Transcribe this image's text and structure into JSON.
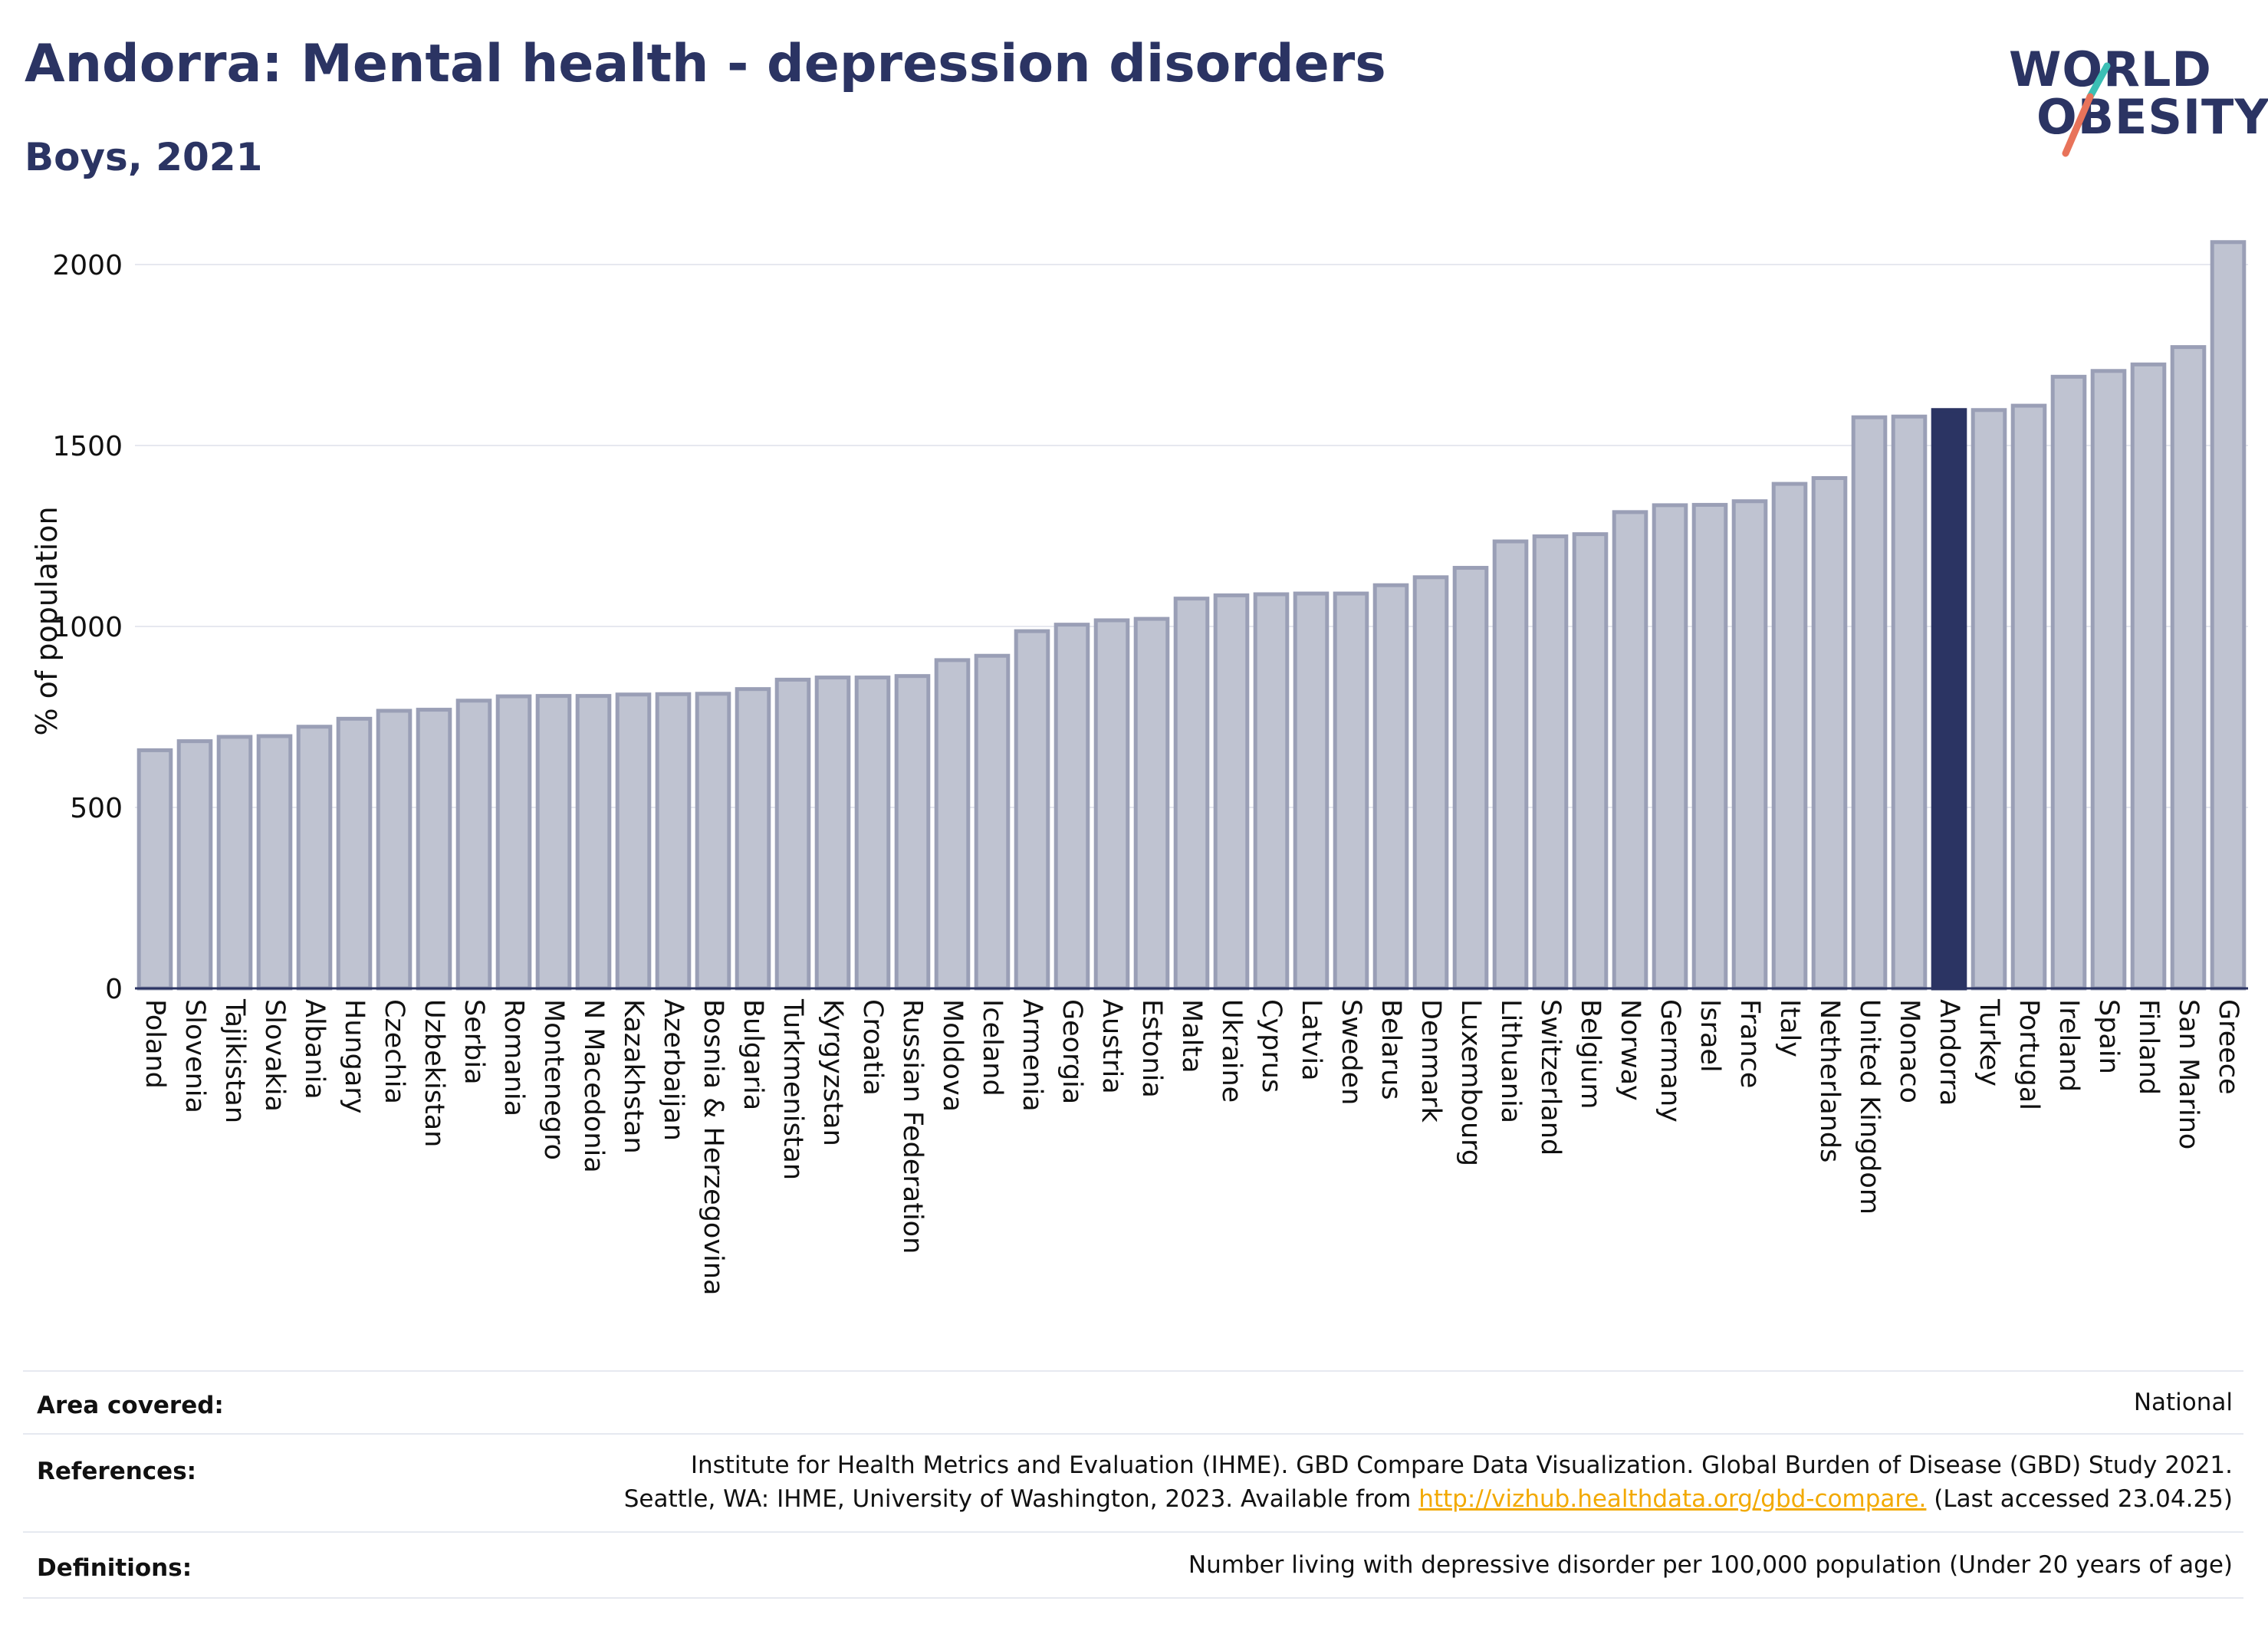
{
  "header": {
    "title": "Andorra: Mental health - depression disorders",
    "subtitle": "Boys, 2021"
  },
  "logo": {
    "line1": "WORLD",
    "line2": "OBESITY",
    "accent_colors": [
      "#3bbfb5",
      "#e8735a"
    ]
  },
  "colors": {
    "bar": "#bfc3d1",
    "bar_stroke": "#9a9fb6",
    "highlight": "#2b3463",
    "grid": "#e6e8ef"
  },
  "chart_data": {
    "type": "bar",
    "ylabel": "% of population",
    "ylim": [
      0,
      2100
    ],
    "yticks": [
      0,
      500,
      1000,
      1500,
      2000
    ],
    "highlight": "Andorra",
    "categories": [
      "Poland",
      "Slovenia",
      "Tajikistan",
      "Slovakia",
      "Albania",
      "Hungary",
      "Czechia",
      "Uzbekistan",
      "Serbia",
      "Romania",
      "Montenegro",
      "N Macedonia",
      "Kazakhstan",
      "Azerbaijan",
      "Bosnia & Herzegovina",
      "Bulgaria",
      "Turkmenistan",
      "Kyrgyzstan",
      "Croatia",
      "Russian Federation",
      "Moldova",
      "Iceland",
      "Armenia",
      "Georgia",
      "Austria",
      "Estonia",
      "Malta",
      "Ukraine",
      "Cyprus",
      "Latvia",
      "Sweden",
      "Belarus",
      "Denmark",
      "Luxembourg",
      "Lithuania",
      "Switzerland",
      "Belgium",
      "Norway",
      "Germany",
      "Israel",
      "France",
      "Italy",
      "Netherlands",
      "United Kingdom",
      "Monaco",
      "Andorra",
      "Turkey",
      "Portugal",
      "Ireland",
      "Spain",
      "Finland",
      "San Marino",
      "Greece"
    ],
    "values": [
      658,
      683,
      695,
      697,
      723,
      745,
      767,
      770,
      795,
      807,
      808,
      808,
      812,
      813,
      814,
      827,
      853,
      859,
      859,
      863,
      907,
      919,
      987,
      1005,
      1017,
      1021,
      1077,
      1086,
      1089,
      1091,
      1091,
      1114,
      1136,
      1162,
      1235,
      1249,
      1255,
      1316,
      1335,
      1336,
      1346,
      1394,
      1410,
      1578,
      1580,
      1598,
      1598,
      1610,
      1690,
      1706,
      1724,
      1772,
      2062
    ]
  },
  "info": {
    "area_label": "Area covered:",
    "area_value": "National",
    "ref_label": "References:",
    "ref_line1": "Institute for Health Metrics and Evaluation (IHME). GBD Compare Data Visualization. Global Burden of Disease (GBD) Study 2021.",
    "ref_line2_pre": "Seattle, WA: IHME, University of Washington, 2023. Available from ",
    "ref_link": "http://vizhub.healthdata.org/gbd-compare.",
    "ref_line2_post": " (Last accessed 23.04.25)",
    "def_label": "Definitions:",
    "def_value": "Number living with depressive disorder per 100,000 population (Under 20 years of age)"
  }
}
